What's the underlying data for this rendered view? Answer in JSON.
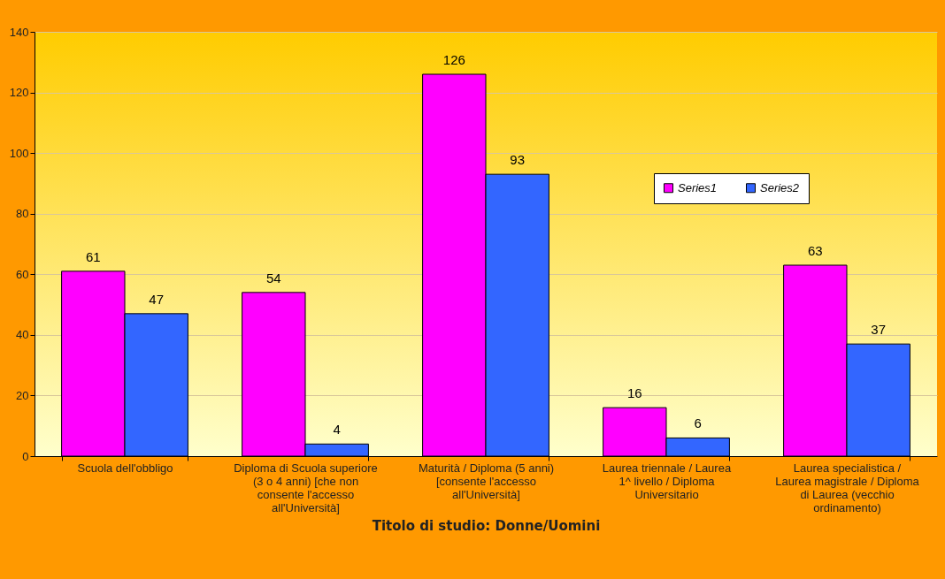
{
  "chart_data": {
    "type": "bar",
    "xlabel": "Titolo di studio: Donne/Uomini",
    "categories": [
      "Scuola dell'obbligo",
      "Diploma di Scuola superiore (3 o 4 anni) [che non consente l'accesso all'Università]",
      "Maturità / Diploma (5 anni) [consente l'accesso all'Università]",
      "Laurea triennale / Laurea 1^ livello / Diploma Universitario",
      "Laurea specialistica / Laurea magistrale / Diploma di Laurea (vecchio ordinamento)"
    ],
    "series": [
      {
        "name": "Series1",
        "color": "#ff00ff",
        "values": [
          61,
          54,
          126,
          16,
          63
        ]
      },
      {
        "name": "Series2",
        "color": "#3366ff",
        "values": [
          47,
          4,
          93,
          6,
          37
        ]
      }
    ],
    "ylim": [
      0,
      140
    ],
    "yticks": [
      0,
      20,
      40,
      60,
      80,
      100,
      120,
      140
    ],
    "grid": "y",
    "legend": "right",
    "data_labels": true
  }
}
